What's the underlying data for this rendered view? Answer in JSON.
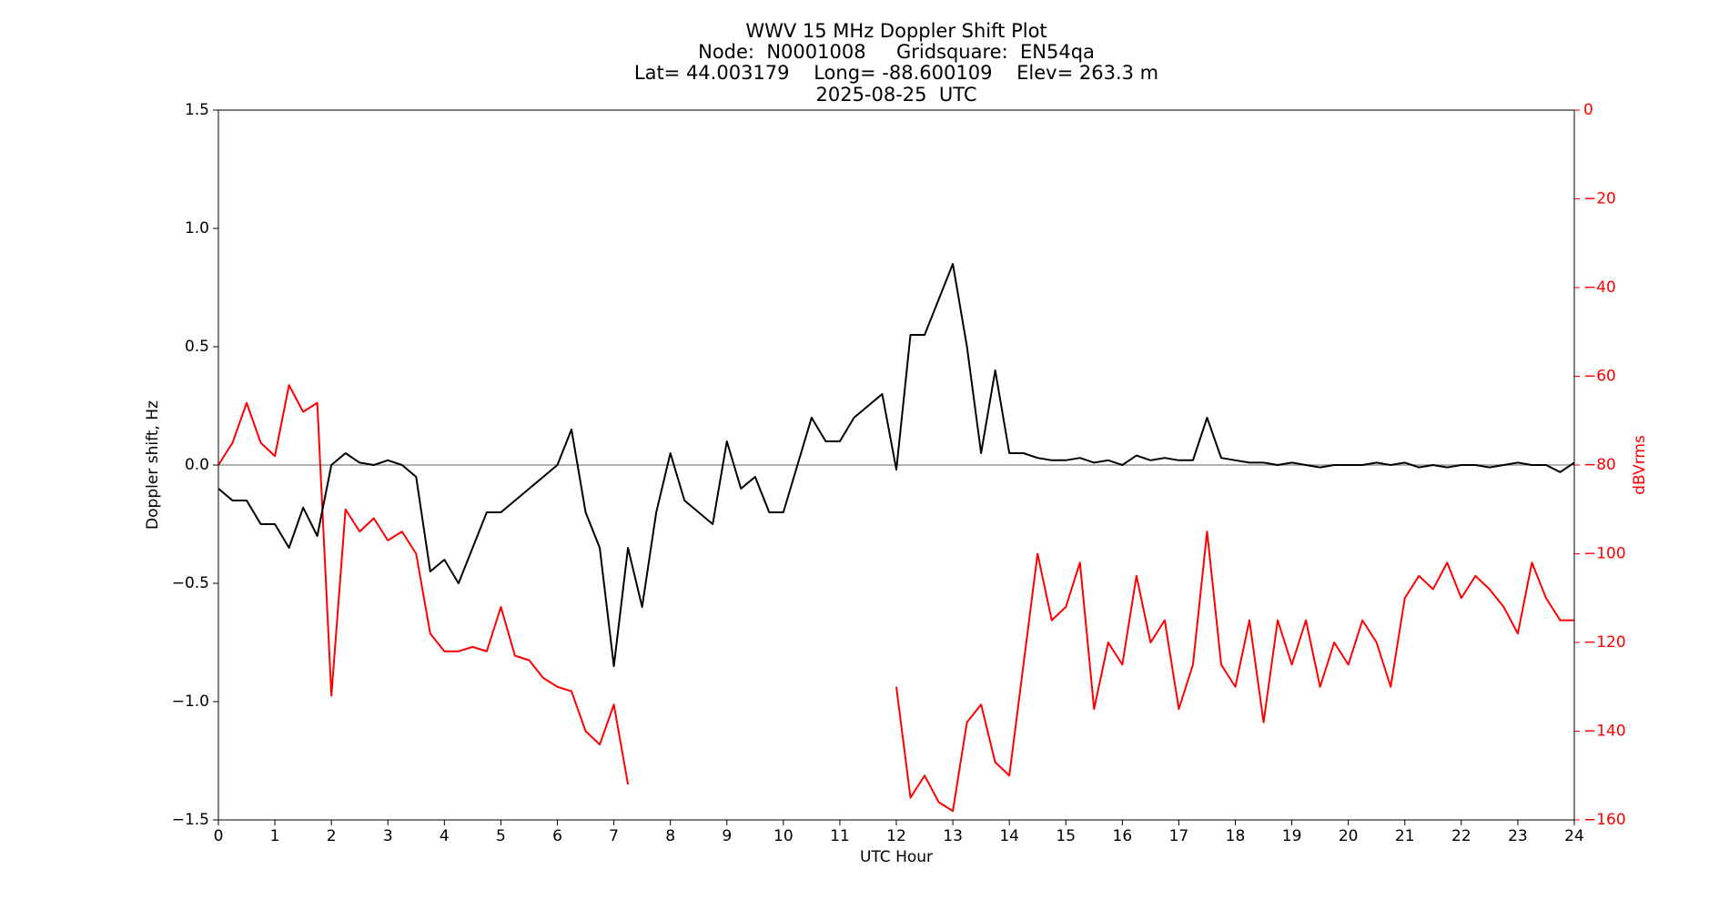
{
  "chart_data": {
    "type": "line",
    "title": [
      "WWV 15 MHz Doppler Shift Plot",
      "Node:  N0001008     Gridsquare:  EN54qa",
      "Lat= 44.003179    Long= -88.600109    Elev= 263.3 m",
      "2025-08-25  UTC"
    ],
    "xlabel": "UTC Hour",
    "ylabel": "Doppler shift, Hz",
    "y2label": "dBVrms",
    "x": [
      0,
      0.25,
      0.5,
      0.75,
      1,
      1.25,
      1.5,
      1.75,
      2,
      2.25,
      2.5,
      2.75,
      3,
      3.25,
      3.5,
      3.75,
      4,
      4.25,
      4.5,
      4.75,
      5,
      5.25,
      5.5,
      5.75,
      6,
      6.25,
      6.5,
      6.75,
      7,
      7.25,
      7.5,
      7.75,
      8,
      8.25,
      8.5,
      8.75,
      9,
      9.25,
      9.5,
      9.75,
      10,
      10.25,
      10.5,
      10.75,
      11,
      11.25,
      11.5,
      11.75,
      12,
      12.25,
      12.5,
      12.75,
      13,
      13.25,
      13.5,
      13.75,
      14,
      14.25,
      14.5,
      14.75,
      15,
      15.25,
      15.5,
      15.75,
      16,
      16.25,
      16.5,
      16.75,
      17,
      17.25,
      17.5,
      17.75,
      18,
      18.25,
      18.5,
      18.75,
      19,
      19.25,
      19.5,
      19.75,
      20,
      20.25,
      20.5,
      20.75,
      21,
      21.25,
      21.5,
      21.75,
      22,
      22.25,
      22.5,
      22.75,
      23,
      23.25,
      23.5,
      23.75,
      24
    ],
    "series": [
      {
        "color": "#000000",
        "values": [
          -0.1,
          -0.15,
          -0.15,
          -0.25,
          -0.25,
          -0.35,
          -0.18,
          -0.3,
          0.0,
          0.05,
          0.01,
          0.0,
          0.02,
          0.0,
          -0.05,
          -0.45,
          -0.4,
          -0.5,
          -0.35,
          -0.2,
          -0.2,
          -0.15,
          -0.1,
          -0.05,
          0.0,
          0.15,
          -0.2,
          -0.35,
          -0.85,
          -0.35,
          -0.6,
          -0.2,
          0.05,
          -0.15,
          -0.2,
          -0.25,
          0.1,
          -0.1,
          -0.05,
          -0.2,
          -0.2,
          0.0,
          0.2,
          0.1,
          0.1,
          0.2,
          0.25,
          0.3,
          -0.02,
          0.55,
          0.55,
          0.7,
          0.85,
          0.5,
          0.05,
          0.4,
          0.05,
          0.05,
          0.03,
          0.02,
          0.02,
          0.03,
          0.01,
          0.02,
          0.0,
          0.04,
          0.02,
          0.03,
          0.02,
          0.02,
          0.2,
          0.03,
          0.02,
          0.01,
          0.01,
          0.0,
          0.01,
          0.0,
          -0.01,
          0.0,
          0.0,
          0.0,
          0.01,
          0.0,
          0.01,
          -0.01,
          0.0,
          -0.01,
          0.0,
          0.0,
          -0.01,
          0.0,
          0.01,
          0.0,
          0.0,
          -0.03,
          0.01
        ]
      },
      {
        "color": "#ff0000",
        "axis": "y2",
        "values": [
          -80,
          -75,
          -66,
          -75,
          -78,
          -62,
          -68,
          -66,
          -132,
          -90,
          -95,
          -92,
          -97,
          -95,
          -100,
          -118,
          -122,
          -122,
          -121,
          -122,
          -112,
          -123,
          -124,
          -128,
          -130,
          -131,
          -140,
          -143,
          -134,
          -152,
          null,
          null,
          null,
          null,
          null,
          null,
          null,
          null,
          null,
          null,
          null,
          null,
          null,
          null,
          null,
          null,
          null,
          null,
          -130,
          -155,
          -150,
          -156,
          -158,
          -138,
          -134,
          -147,
          -150,
          -125,
          -100,
          -115,
          -112,
          -102,
          -135,
          -120,
          -125,
          -105,
          -120,
          -115,
          -135,
          -125,
          -95,
          -125,
          -130,
          -115,
          -138,
          -115,
          -125,
          -115,
          -130,
          -120,
          -125,
          -115,
          -120,
          -130,
          -110,
          -105,
          -108,
          -102,
          -110,
          -105,
          -108,
          -112,
          -118,
          -102,
          -110,
          -115,
          -115
        ]
      }
    ],
    "xlim": [
      0,
      24
    ],
    "xticks": [
      0,
      1,
      2,
      3,
      4,
      5,
      6,
      7,
      8,
      9,
      10,
      11,
      12,
      13,
      14,
      15,
      16,
      17,
      18,
      19,
      20,
      21,
      22,
      23,
      24
    ],
    "ylim": [
      -1.5,
      1.5
    ],
    "yticks": [
      {
        "value": -1.5,
        "label": "−1.5"
      },
      {
        "value": -1.0,
        "label": "−1.0"
      },
      {
        "value": -0.5,
        "label": "−0.5"
      },
      {
        "value": 0,
        "label": "0.0"
      },
      {
        "value": 0.5,
        "label": "0.5"
      },
      {
        "value": 1.0,
        "label": "1.0"
      },
      {
        "value": 1.5,
        "label": "1.5"
      }
    ],
    "y2lim": [
      -160,
      0
    ],
    "y2ticks": [
      {
        "value": -160,
        "label": "−160"
      },
      {
        "value": -140,
        "label": "−140"
      },
      {
        "value": -120,
        "label": "−120"
      },
      {
        "value": -100,
        "label": "−100"
      },
      {
        "value": -80,
        "label": "−80"
      },
      {
        "value": -60,
        "label": "−60"
      },
      {
        "value": -40,
        "label": "−40"
      },
      {
        "value": -20,
        "label": "−20"
      },
      0
    ],
    "y2color": "#ff0000",
    "grid": false
  }
}
